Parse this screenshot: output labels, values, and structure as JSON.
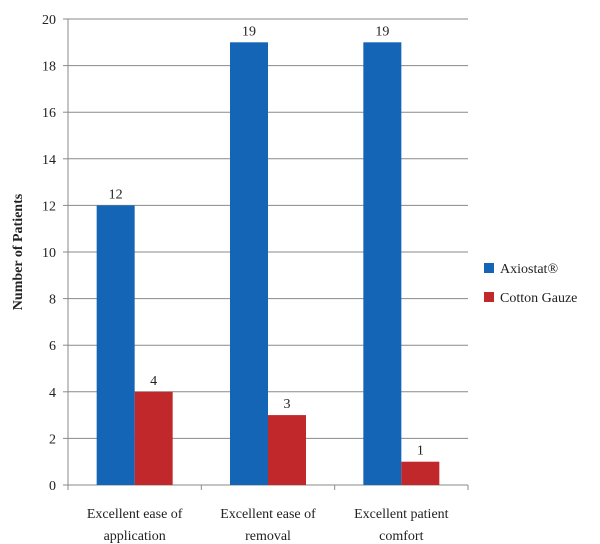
{
  "chart_data": {
    "type": "bar",
    "categories": [
      [
        "Excellent ease of",
        "application"
      ],
      [
        "Excellent ease of",
        "removal"
      ],
      [
        "Excellent patient",
        "comfort"
      ]
    ],
    "series": [
      {
        "name": "Axiostat®",
        "values": [
          12,
          19,
          19
        ],
        "color": "#1565b6"
      },
      {
        "name": "Cotton Gauze",
        "values": [
          4,
          3,
          1
        ],
        "color": "#c0282b"
      }
    ],
    "ylabel": "Number of Patients",
    "ylim": [
      0,
      20
    ],
    "yticks": [
      0,
      2,
      4,
      6,
      8,
      10,
      12,
      14,
      16,
      18,
      20
    ],
    "grid": true,
    "legend_position": "right",
    "data_labels": true
  }
}
